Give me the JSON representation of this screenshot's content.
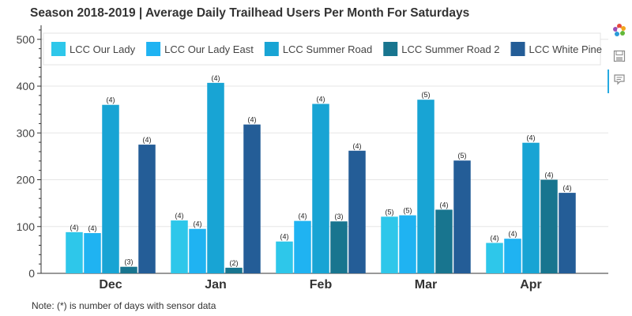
{
  "chart_data": {
    "type": "bar",
    "title": "Season 2018-2019 | Average Daily Trailhead Users Per Month For Saturdays",
    "categories": [
      "Dec",
      "Jan",
      "Feb",
      "Mar",
      "Apr"
    ],
    "ylim": [
      0,
      530
    ],
    "yticks": [
      0,
      100,
      200,
      300,
      400,
      500
    ],
    "ytick_labels": [
      "0",
      "100",
      "200",
      "300",
      "400",
      "500"
    ],
    "grid": true,
    "legend_position": "top",
    "series": [
      {
        "name": "LCC Our Lady",
        "color": "#2ec7ea",
        "values": [
          88,
          113,
          68,
          121,
          65
        ],
        "labels": [
          "(4)",
          "(4)",
          "(4)",
          "(5)",
          "(4)"
        ]
      },
      {
        "name": "LCC Our Lady East",
        "color": "#1fb3f2",
        "values": [
          86,
          95,
          112,
          124,
          74
        ],
        "labels": [
          "(4)",
          "(4)",
          "(4)",
          "(5)",
          "(4)"
        ]
      },
      {
        "name": "LCC Summer Road",
        "color": "#18a4d4",
        "values": [
          360,
          407,
          362,
          371,
          279
        ],
        "labels": [
          "(4)",
          "(4)",
          "(4)",
          "(5)",
          "(4)"
        ]
      },
      {
        "name": "LCC Summer Road 2",
        "color": "#18758f",
        "values": [
          14,
          12,
          111,
          136,
          200
        ],
        "labels": [
          "(3)",
          "(2)",
          "(3)",
          "(4)",
          "(4)"
        ]
      },
      {
        "name": "LCC White Pine",
        "color": "#245d97",
        "values": [
          275,
          318,
          262,
          241,
          172
        ],
        "labels": [
          "(4)",
          "(4)",
          "(4)",
          "(5)",
          "(4)"
        ]
      }
    ]
  },
  "footnote": "Note: (*) is number of days with sensor data",
  "toolbar": {
    "tools": [
      "logo-icon",
      "save-icon",
      "hover-icon"
    ]
  }
}
